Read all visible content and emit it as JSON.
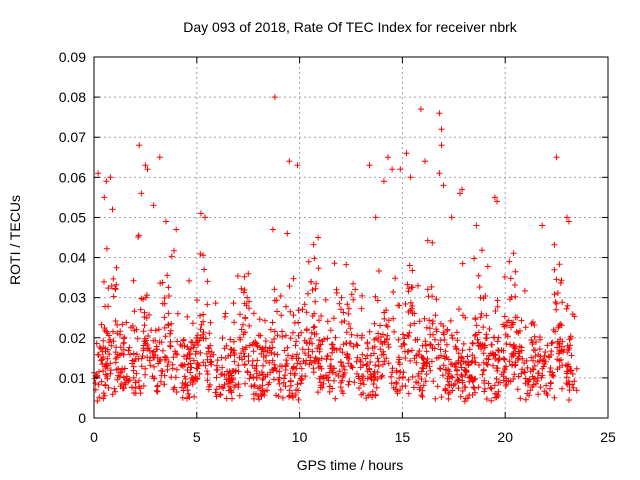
{
  "chart_data": {
    "type": "scatter",
    "title": "Day 093 of 2018, Rate Of TEC Index for receiver nbrk",
    "xlabel": "GPS time / hours",
    "ylabel": "ROTI / TECUs",
    "xlim": [
      0,
      25
    ],
    "ylim": [
      0,
      0.09
    ],
    "xticks": [
      "0",
      "5",
      "10",
      "15",
      "20",
      "25"
    ],
    "yticks": [
      "0",
      "0.01",
      "0.02",
      "0.03",
      "0.04",
      "0.05",
      "0.06",
      "0.07",
      "0.08",
      "0.09"
    ],
    "grid": true,
    "marker": "plus",
    "color": "#ff0000",
    "data_range_hours": [
      0,
      23.5
    ],
    "points_outliers": [
      [
        0.2,
        0.061
      ],
      [
        0.6,
        0.059
      ],
      [
        0.8,
        0.06
      ],
      [
        0.5,
        0.055
      ],
      [
        0.9,
        0.052
      ],
      [
        2.2,
        0.068
      ],
      [
        2.5,
        0.063
      ],
      [
        2.6,
        0.062
      ],
      [
        2.3,
        0.056
      ],
      [
        2.9,
        0.053
      ],
      [
        3.2,
        0.065
      ],
      [
        3.5,
        0.049
      ],
      [
        4.0,
        0.047
      ],
      [
        5.2,
        0.051
      ],
      [
        5.4,
        0.05
      ],
      [
        8.7,
        0.047
      ],
      [
        8.8,
        0.08
      ],
      [
        9.4,
        0.046
      ],
      [
        9.5,
        0.064
      ],
      [
        9.9,
        0.063
      ],
      [
        10.9,
        0.045
      ],
      [
        13.4,
        0.063
      ],
      [
        13.7,
        0.05
      ],
      [
        14.1,
        0.059
      ],
      [
        14.3,
        0.065
      ],
      [
        14.5,
        0.062
      ],
      [
        14.9,
        0.062
      ],
      [
        15.2,
        0.066
      ],
      [
        15.4,
        0.06
      ],
      [
        15.9,
        0.077
      ],
      [
        16.1,
        0.064
      ],
      [
        16.8,
        0.076
      ],
      [
        16.9,
        0.072
      ],
      [
        16.9,
        0.068
      ],
      [
        16.8,
        0.061
      ],
      [
        17.0,
        0.058
      ],
      [
        17.4,
        0.05
      ],
      [
        17.8,
        0.056
      ],
      [
        17.9,
        0.057
      ],
      [
        18.6,
        0.048
      ],
      [
        19.5,
        0.055
      ],
      [
        19.6,
        0.054
      ],
      [
        20.2,
        0.039
      ],
      [
        21.8,
        0.048
      ],
      [
        22.5,
        0.065
      ],
      [
        23.0,
        0.05
      ],
      [
        23.1,
        0.049
      ]
    ]
  }
}
